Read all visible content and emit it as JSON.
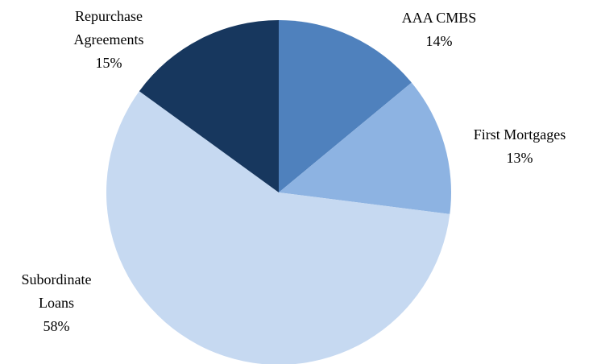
{
  "chart_data": {
    "type": "pie",
    "categories": [
      "AAA CMBS",
      "First Mortgages",
      "Subordinate Loans",
      "Repurchase Agreements"
    ],
    "values": [
      14,
      13,
      58,
      15
    ],
    "value_labels": [
      "14%",
      "13%",
      "58%",
      "15%"
    ],
    "colors": [
      "#4f81bd",
      "#8db3e2",
      "#c6d9f1",
      "#17375e"
    ]
  }
}
